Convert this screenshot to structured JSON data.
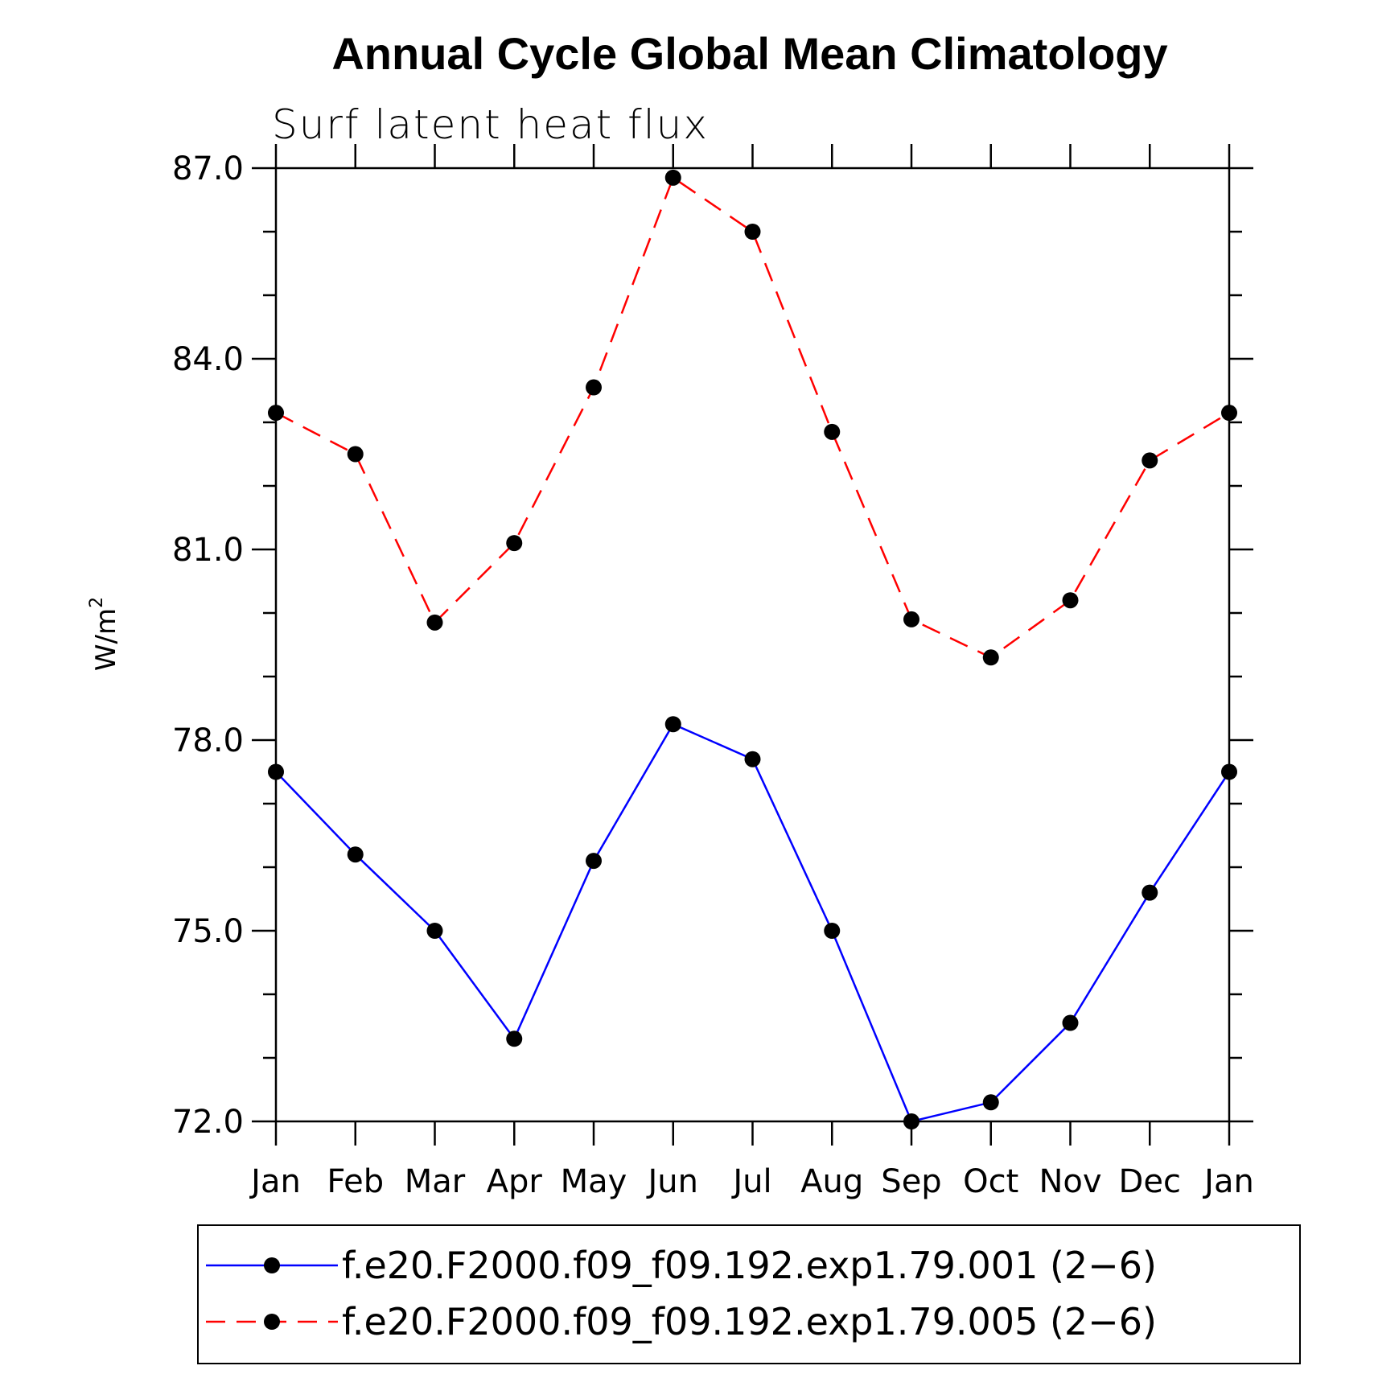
{
  "chart_data": {
    "type": "line",
    "title": "Annual Cycle Global Mean Climatology",
    "subtitle": "Surf latent heat flux",
    "ylabel": "W/m",
    "ylabel_superscript": "2",
    "xlabel": "",
    "categories": [
      "Jan",
      "Feb",
      "Mar",
      "Apr",
      "May",
      "Jun",
      "Jul",
      "Aug",
      "Sep",
      "Oct",
      "Nov",
      "Dec",
      "Jan"
    ],
    "ylim": [
      72.0,
      87.0
    ],
    "yticks": [
      "72.0",
      "75.0",
      "78.0",
      "81.0",
      "84.0",
      "87.0"
    ],
    "grid": false,
    "legend_position": "bottom",
    "series": [
      {
        "name": "f.e20.F2000.f09_f09.192.exp1.79.001 (2−6)",
        "color": "#0000ff",
        "dash": "solid",
        "marker": "filled-circle",
        "values": [
          77.5,
          76.2,
          75.0,
          73.3,
          76.1,
          78.25,
          77.7,
          75.0,
          72.0,
          72.3,
          73.55,
          75.6,
          77.5
        ]
      },
      {
        "name": "f.e20.F2000.f09_f09.192.exp1.79.005 (2−6)",
        "color": "#ff0000",
        "dash": "dashed",
        "marker": "filled-circle",
        "values": [
          83.15,
          82.5,
          79.85,
          81.1,
          83.55,
          86.85,
          86.0,
          82.85,
          79.9,
          79.3,
          80.2,
          82.4,
          83.15
        ]
      }
    ]
  }
}
